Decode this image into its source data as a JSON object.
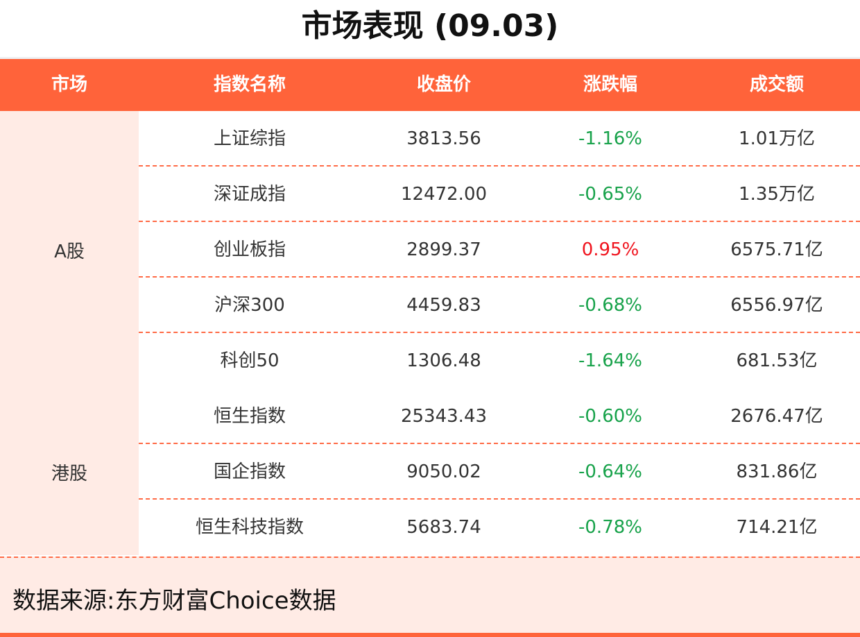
{
  "title": "市场表现 (09.03)",
  "colors": {
    "accent": "#ff633a",
    "light_bg": "#ffebe5",
    "down": "#17a24a",
    "up": "#f0141e"
  },
  "headers": [
    "市场",
    "指数名称",
    "收盘价",
    "涨跌幅",
    "成交额"
  ],
  "groups": [
    {
      "market": "A股",
      "rows": [
        {
          "name": "上证综指",
          "close": "3813.56",
          "change": "-1.16%",
          "dir": "down",
          "turnover": "1.01万亿"
        },
        {
          "name": "深证成指",
          "close": "12472.00",
          "change": "-0.65%",
          "dir": "down",
          "turnover": "1.35万亿"
        },
        {
          "name": "创业板指",
          "close": "2899.37",
          "change": "0.95%",
          "dir": "up",
          "turnover": "6575.71亿"
        },
        {
          "name": "沪深300",
          "close": "4459.83",
          "change": "-0.68%",
          "dir": "down",
          "turnover": "6556.97亿"
        },
        {
          "name": "科创50",
          "close": "1306.48",
          "change": "-1.64%",
          "dir": "down",
          "turnover": "681.53亿"
        }
      ]
    },
    {
      "market": "港股",
      "rows": [
        {
          "name": "恒生指数",
          "close": "25343.43",
          "change": "-0.60%",
          "dir": "down",
          "turnover": "2676.47亿"
        },
        {
          "name": "国企指数",
          "close": "9050.02",
          "change": "-0.64%",
          "dir": "down",
          "turnover": "831.86亿"
        },
        {
          "name": "恒生科技指数",
          "close": "5683.74",
          "change": "-0.78%",
          "dir": "down",
          "turnover": "714.21亿"
        }
      ]
    }
  ],
  "footer": "数据来源:东方财富Choice数据"
}
